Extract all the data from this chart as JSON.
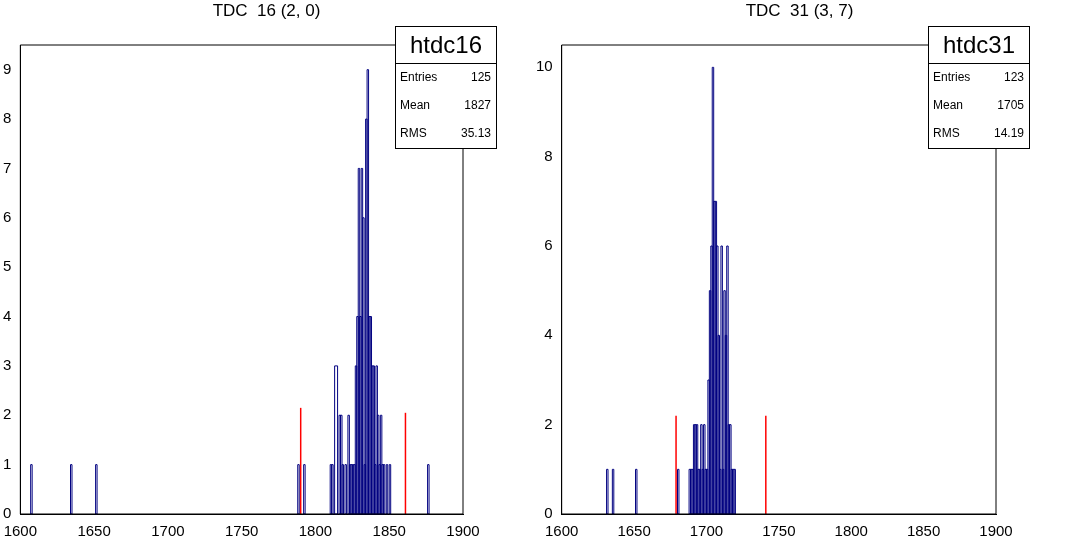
{
  "chart_data": [
    {
      "type": "histogram",
      "title": "TDC  16 (2, 0)",
      "color": "#000080",
      "bins": [
        1607,
        1608,
        1634,
        1635,
        1651,
        1652,
        1788,
        1789,
        1792,
        1793,
        1810,
        1811,
        1812,
        1813,
        1815,
        1816,
        1817,
        1818,
        1819,
        1820,
        1821,
        1822,
        1823,
        1824,
        1825,
        1826,
        1827,
        1828,
        1829,
        1830,
        1831,
        1832,
        1833,
        1834,
        1835,
        1836,
        1837,
        1838,
        1839,
        1840,
        1841,
        1842,
        1843,
        1844,
        1845,
        1846,
        1847,
        1848,
        1849,
        1850,
        1851,
        1876,
        1877
      ],
      "values": [
        1,
        0,
        1,
        0,
        1,
        0,
        1,
        0,
        1,
        0,
        1,
        1,
        0,
        3,
        0,
        2,
        2,
        1,
        0,
        1,
        0,
        2,
        1,
        1,
        1,
        1,
        3,
        4,
        7,
        4,
        7,
        6,
        1,
        8,
        9,
        4,
        4,
        3,
        3,
        1,
        3,
        2,
        1,
        2,
        1,
        1,
        0,
        1,
        0,
        1,
        0,
        1
      ],
      "series": [
        {
          "type": "line",
          "color": "#ff0000",
          "x": [
            1790,
            1790
          ],
          "values": [
            0,
            2.15
          ]
        },
        {
          "type": "line",
          "color": "#ff0000",
          "x": [
            1861,
            1861
          ],
          "values": [
            0,
            2.05
          ]
        }
      ],
      "xlim": [
        1600,
        1900
      ],
      "xticks": [
        1600,
        1650,
        1700,
        1750,
        1800,
        1850,
        1900
      ],
      "ylim": [
        0,
        9.5
      ],
      "yticks": [
        0,
        1,
        2,
        3,
        4,
        5,
        6,
        7,
        8,
        9
      ],
      "annotations": [
        "htdc16",
        "Entries 125",
        "Mean 1827",
        "RMS 35.13"
      ]
    },
    {
      "type": "histogram",
      "title": "TDC  31 (3, 7)",
      "color": "#000080",
      "bins": [
        1631,
        1632,
        1635,
        1636,
        1651,
        1652,
        1680,
        1681,
        1688,
        1689,
        1690,
        1691,
        1692,
        1693,
        1694,
        1695,
        1696,
        1697,
        1698,
        1699,
        1700,
        1701,
        1702,
        1703,
        1704,
        1705,
        1706,
        1707,
        1708,
        1709,
        1710,
        1711,
        1712,
        1713,
        1714,
        1715,
        1716,
        1717,
        1718,
        1719,
        1720
      ],
      "values": [
        1,
        0,
        1,
        0,
        1,
        0,
        1,
        0,
        1,
        1,
        1,
        2,
        2,
        2,
        1,
        1,
        2,
        1,
        2,
        1,
        1,
        3,
        5,
        6,
        10,
        7,
        7,
        6,
        4,
        1,
        6,
        1,
        5,
        4,
        6,
        2,
        2,
        1,
        1,
        1
      ],
      "series": [
        {
          "type": "line",
          "color": "#ff0000",
          "x": [
            1679,
            1679
          ],
          "values": [
            0,
            2.2
          ]
        },
        {
          "type": "line",
          "color": "#ff0000",
          "x": [
            1741,
            1741
          ],
          "values": [
            0,
            2.2
          ]
        }
      ],
      "xlim": [
        1600,
        1900
      ],
      "xticks": [
        1600,
        1650,
        1700,
        1750,
        1800,
        1850,
        1900
      ],
      "ylim": [
        0,
        10.5
      ],
      "yticks": [
        0,
        2,
        4,
        6,
        8,
        10
      ],
      "annotations": [
        "htdc31",
        "Entries 123",
        "Mean 1705",
        "RMS 14.19"
      ]
    }
  ]
}
